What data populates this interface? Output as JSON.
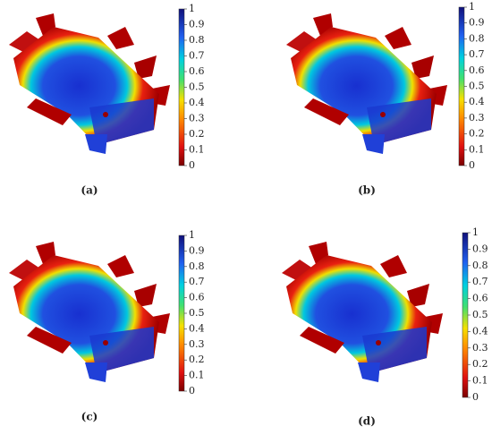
{
  "panels": [
    {
      "label": "(a)",
      "colorbar": {
        "ticks": [
          0,
          0.1,
          0.2,
          0.3,
          0.4,
          0.5,
          0.6,
          0.7,
          0.8,
          0.9,
          1
        ]
      }
    },
    {
      "label": "(b)",
      "colorbar": {
        "ticks": [
          0,
          0.1,
          0.2,
          0.3,
          0.4,
          0.5,
          0.6,
          0.7,
          0.8,
          0.9,
          1
        ]
      }
    },
    {
      "label": "(c)",
      "colorbar": {
        "ticks": [
          0,
          0.1,
          0.2,
          0.3,
          0.4,
          0.5,
          0.6,
          0.7,
          0.8,
          0.9,
          1
        ]
      }
    },
    {
      "label": "(d)",
      "colorbar": {
        "ticks": [
          0,
          0.1,
          0.2,
          0.3,
          0.4,
          0.5,
          0.6,
          0.7,
          0.8,
          0.9,
          1
        ]
      }
    }
  ]
}
